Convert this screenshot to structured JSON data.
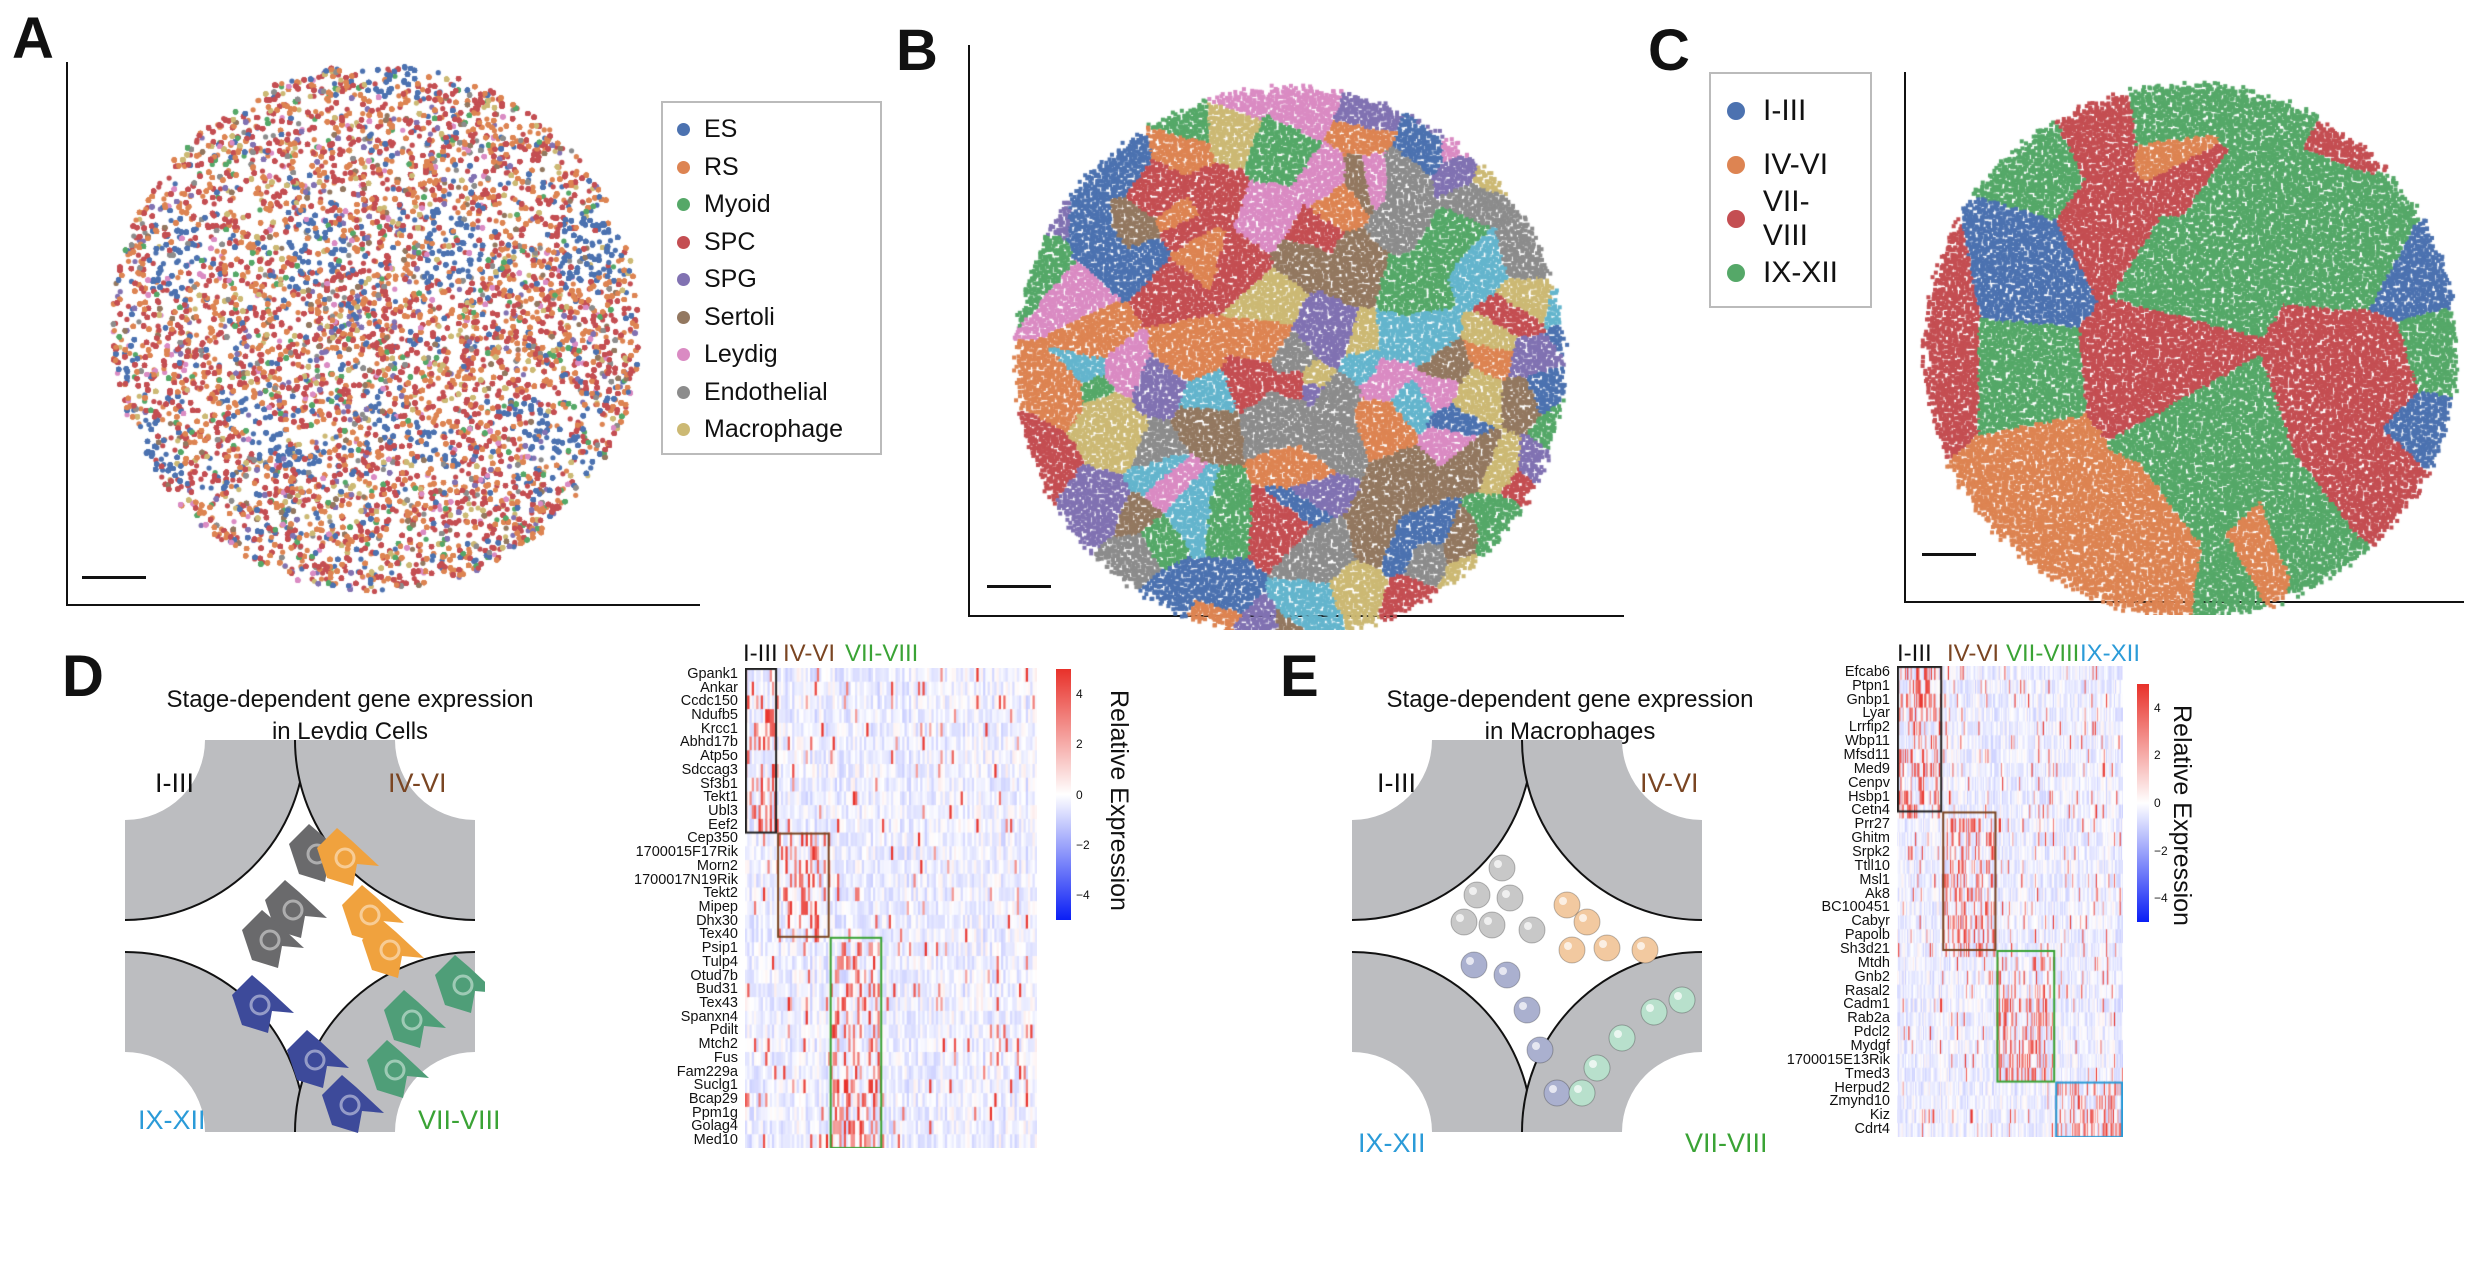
{
  "panel_labels": [
    "A",
    "B",
    "C",
    "D",
    "E"
  ],
  "colors": {
    "ES": "#4c72b0",
    "RS": "#dd8452",
    "Myoid": "#55a868",
    "SPC": "#c44e52",
    "SPG": "#8172b2",
    "Sertoli": "#937860",
    "Leydig": "#da8bc3",
    "Endothelial": "#8c8c8c",
    "Macrophage": "#ccb974",
    "cyan": "#64b5cd",
    "stage_I_III": "#111111",
    "stage_IV_VI": "#7a4522",
    "stage_VII_VIII": "#3aa335",
    "stage_IX_XII": "#2b9bd8"
  },
  "panel_a": {
    "legend": [
      "ES",
      "RS",
      "Myoid",
      "SPC",
      "SPG",
      "Sertoli",
      "Leydig",
      "Endothelial",
      "Macrophage"
    ]
  },
  "panel_c": {
    "legend": [
      "I-III",
      "IV-VI",
      "VII-VIII",
      "IX-XII"
    ]
  },
  "panel_d": {
    "title_line1": "Stage-dependent gene expression",
    "title_line2": "in Leydig Cells",
    "stages": {
      "tl": "I-III",
      "tr": "IV-VI",
      "bl": "IX-XII",
      "br": "VII-VIII"
    },
    "heatmap_headers": [
      "I-III",
      "IV-VI",
      "VII-VIII"
    ],
    "genes": [
      "Gpank1",
      "Ankar",
      "Ccdc150",
      "Ndufb5",
      "Krcc1",
      "Abhd17b",
      "Atp5o",
      "Sdccag3",
      "Sf3b1",
      "Tekt1",
      "Ubl3",
      "Eef2",
      "Cep350",
      "1700015F17Rik",
      "Morn2",
      "1700017N19Rik",
      "Tekt2",
      "Mipep",
      "Dhx30",
      "Tex40",
      "Psip1",
      "Tulp4",
      "Otud7b",
      "Bud31",
      "Tex43",
      "Spanxn4",
      "Pdilt",
      "Mtch2",
      "Fus",
      "Fam229a",
      "Suclg1",
      "Bcap29",
      "Ppm1g",
      "Golag4",
      "Med10"
    ],
    "colorbar_label": "Relative Expression",
    "colorbar_ticks": [
      "4",
      "2",
      "0",
      "−2",
      "−4"
    ]
  },
  "panel_e": {
    "title_line1": "Stage-dependent gene expression",
    "title_line2": "in Macrophages",
    "stages": {
      "tl": "I-III",
      "tr": "IV-VI",
      "bl": "IX-XII",
      "br": "VII-VIII"
    },
    "heatmap_headers": [
      "I-III",
      "IV-VI",
      "VII-VIII",
      "IX-XII"
    ],
    "genes": [
      "Efcab6",
      "Ptpn1",
      "Gnbp1",
      "Lyar",
      "Lrrfip2",
      "Wbp11",
      "Mfsd11",
      "Med9",
      "Cenpv",
      "Hsbp1",
      "Cetn4",
      "Prr27",
      "Ghitm",
      "Srpk2",
      "Ttll10",
      "Msl1",
      "Ak8",
      "BC100451",
      "Cabyr",
      "Papolb",
      "Sh3d21",
      "Mtdh",
      "Gnb2",
      "Rasal2",
      "Cadm1",
      "Rab2a",
      "Pdcl2",
      "Mydgf",
      "1700015E13Rik",
      "Tmed3",
      "Herpud2",
      "Zmynd10",
      "Kiz",
      "Cdrt4"
    ],
    "colorbar_label": "Relative Expression",
    "colorbar_ticks": [
      "4",
      "2",
      "0",
      "−2",
      "−4"
    ]
  }
}
